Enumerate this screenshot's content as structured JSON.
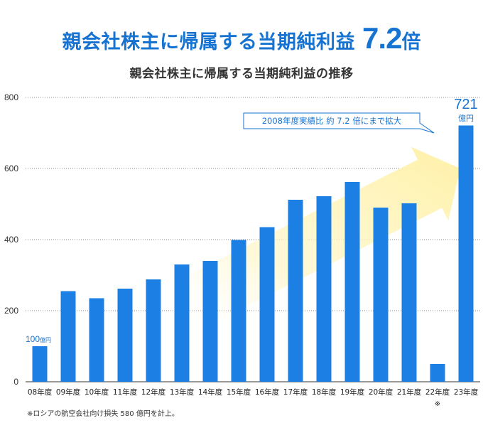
{
  "headline": {
    "text": "親会社株主に帰属する当期純利益",
    "number": "7.2",
    "unit": "倍"
  },
  "chart_data": {
    "type": "bar",
    "title": "親会社株主に帰属する当期純利益の推移",
    "categories": [
      "08年度",
      "09年度",
      "10年度",
      "11年度",
      "12年度",
      "13年度",
      "14年度",
      "15年度",
      "16年度",
      "17年度",
      "18年度",
      "19年度",
      "20年度",
      "21年度",
      "22年度",
      "23年度"
    ],
    "values": [
      100,
      255,
      235,
      262,
      288,
      330,
      340,
      399,
      435,
      512,
      522,
      562,
      490,
      502,
      50,
      721
    ],
    "ylim": [
      0,
      800
    ],
    "yticks": [
      0,
      200,
      400,
      600,
      800
    ],
    "grid": true,
    "bar_color": "#1b7fe3",
    "label_first": {
      "value": "100",
      "unit": "億円"
    },
    "label_last": {
      "value": "721",
      "unit": "億円"
    },
    "callout": "2008年度実績比 約 7.2 倍にまで拡大",
    "category_note": {
      "category": "22年度",
      "mark": "※"
    }
  },
  "colors": {
    "accent": "#1673d2",
    "bar": "#1b7fe3",
    "arrow": "#fff6c8"
  },
  "footnote": "※ロシアの航空会社向け損失 580 億円を計上。"
}
